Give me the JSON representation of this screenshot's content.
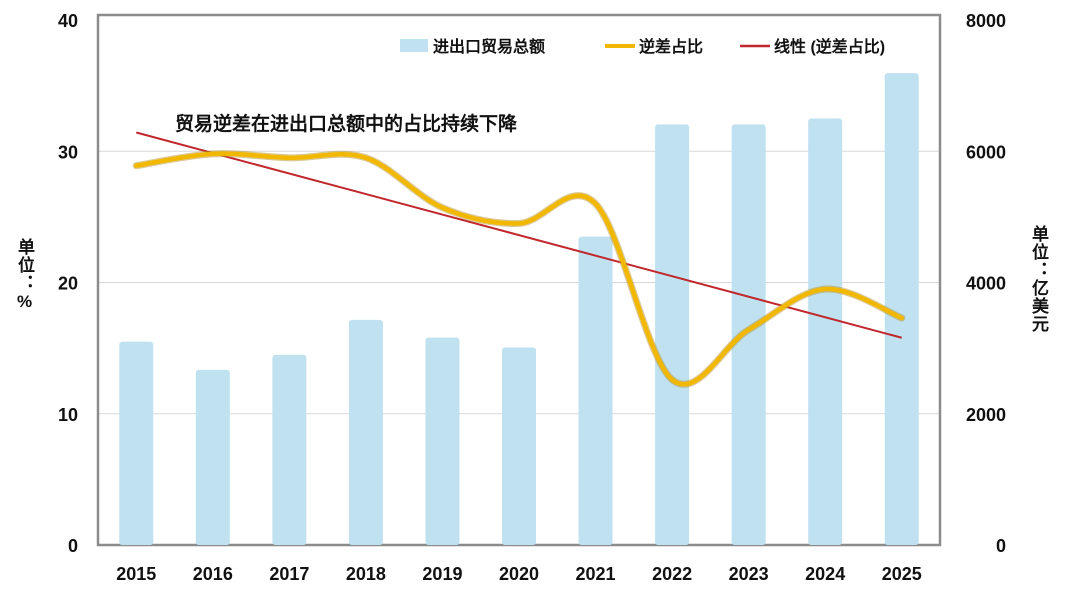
{
  "chart_data": {
    "type": "bar+line",
    "categories": [
      "2015",
      "2016",
      "2017",
      "2018",
      "2019",
      "2020",
      "2021",
      "2022",
      "2023",
      "2024",
      "2025"
    ],
    "series": [
      {
        "name": "进出口贸易总额",
        "type": "bar",
        "axis": "right",
        "color": "#bfe1f0",
        "values": [
          3100,
          2670,
          2900,
          3430,
          3160,
          3010,
          4700,
          6410,
          6410,
          6500,
          7190
        ]
      },
      {
        "name": "逆差占比",
        "type": "line",
        "axis": "left",
        "color": "#f2b800",
        "smooth": true,
        "values": [
          28.9,
          29.8,
          29.5,
          29.5,
          25.7,
          24.5,
          26.0,
          12.6,
          16.4,
          19.5,
          17.3
        ]
      },
      {
        "name": "线性 (逆差占比)",
        "type": "trendline",
        "axis": "left",
        "color": "#c0282d",
        "of": "逆差占比"
      }
    ],
    "annotation": "贸易逆差在进出口总额中的占比持续下降",
    "ylabel_left": "单位：%",
    "ylabel_right": "单位：亿美元",
    "ylim_left": [
      0,
      40
    ],
    "ylim_right": [
      0,
      8000
    ],
    "yticks_left": [
      "0",
      "10",
      "20",
      "30",
      "40"
    ],
    "yticks_right": [
      "0",
      "2000",
      "4000",
      "6000",
      "8000"
    ],
    "grid": true,
    "legend": "top-right"
  }
}
